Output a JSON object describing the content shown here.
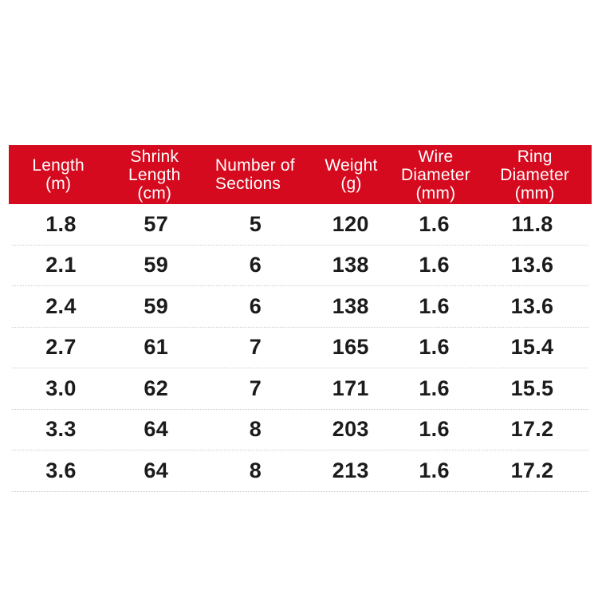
{
  "table": {
    "header_bg_color": "#d50a1e",
    "header_text_color": "#ffffff",
    "columns": [
      {
        "lines": [
          "Length",
          "(m)",
          ""
        ]
      },
      {
        "lines": [
          "Shrink",
          "Length",
          "(cm)"
        ]
      },
      {
        "lines": [
          "Number of",
          "Sections",
          ""
        ]
      },
      {
        "lines": [
          "Weight",
          "(g)",
          ""
        ]
      },
      {
        "lines": [
          "Wire",
          "Diameter",
          "(mm)"
        ]
      },
      {
        "lines": [
          "Ring",
          "Diameter",
          "(mm)"
        ]
      }
    ],
    "rows": [
      [
        "1.8",
        "57",
        "5",
        "120",
        "1.6",
        "11.8"
      ],
      [
        "2.1",
        "59",
        "6",
        "138",
        "1.6",
        "13.6"
      ],
      [
        "2.4",
        "59",
        "6",
        "138",
        "1.6",
        "13.6"
      ],
      [
        "2.7",
        "61",
        "7",
        "165",
        "1.6",
        "15.4"
      ],
      [
        "3.0",
        "62",
        "7",
        "171",
        "1.6",
        "15.5"
      ],
      [
        "3.3",
        "64",
        "8",
        "203",
        "1.6",
        "17.2"
      ],
      [
        "3.6",
        "64",
        "8",
        "213",
        "1.6",
        "17.2"
      ]
    ]
  },
  "chart_data": {
    "type": "table",
    "title": "",
    "columns": [
      "Length (m)",
      "Shrink Length (cm)",
      "Number of Sections",
      "Weight (g)",
      "Wire Diameter (mm)",
      "Ring Diameter (mm)"
    ],
    "rows": [
      [
        1.8,
        57,
        5,
        120,
        1.6,
        11.8
      ],
      [
        2.1,
        59,
        6,
        138,
        1.6,
        13.6
      ],
      [
        2.4,
        59,
        6,
        138,
        1.6,
        13.6
      ],
      [
        2.7,
        61,
        7,
        165,
        1.6,
        15.4
      ],
      [
        3.0,
        62,
        7,
        171,
        1.6,
        15.5
      ],
      [
        3.3,
        64,
        8,
        203,
        1.6,
        17.2
      ],
      [
        3.6,
        64,
        8,
        213,
        1.6,
        17.2
      ]
    ],
    "layout_hints": {
      "header_background": "#d50a1e",
      "header_text": "white",
      "row_separator": "dotted light gray",
      "background": "white"
    }
  }
}
